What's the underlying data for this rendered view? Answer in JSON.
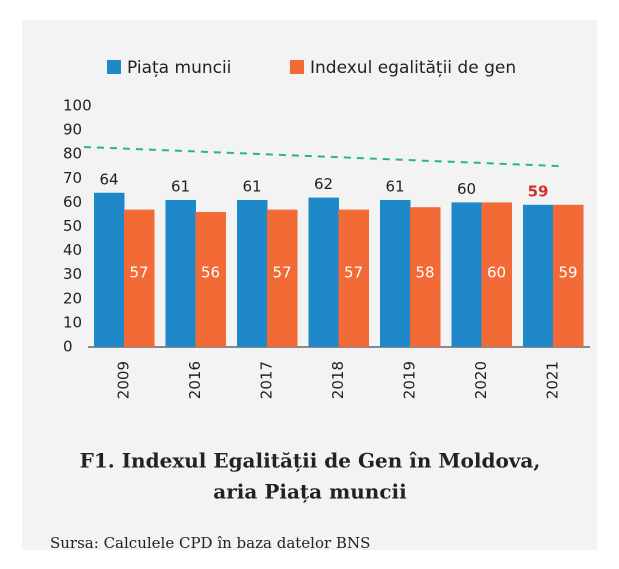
{
  "chart_data": {
    "type": "bar",
    "title": [
      "F1. Indexul Egalității de Gen în Moldova,",
      "aria Piața muncii"
    ],
    "source": "Sursa: Calculele CPD în baza datelor BNS",
    "categories": [
      "2009",
      "2016",
      "2017",
      "2018",
      "2019",
      "2020",
      "2021"
    ],
    "series": [
      {
        "name": "Piața muncii",
        "color": "#1f88c9",
        "values": [
          64,
          61,
          61,
          62,
          61,
          60,
          59
        ]
      },
      {
        "name": "Indexul egalității de gen",
        "color": "#f26a36",
        "values": [
          57,
          56,
          57,
          57,
          58,
          60,
          59
        ]
      }
    ],
    "trend_line": {
      "color": "#26b39a",
      "values": [
        83,
        75
      ]
    },
    "highlight_index": 6,
    "highlight_color": "#d62f2f",
    "ylim": [
      0,
      100
    ],
    "yticks": [
      0,
      10,
      20,
      30,
      40,
      50,
      60,
      70,
      80,
      90,
      100
    ]
  }
}
